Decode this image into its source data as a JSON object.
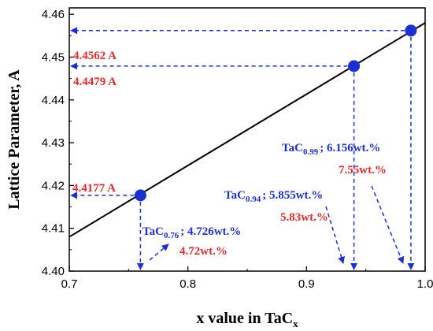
{
  "chart_data": {
    "type": "scatter",
    "xlabel": "x value in TaC",
    "xlabel_sub": "x",
    "ylabel": "Lattice Parameter, A",
    "xlim": [
      0.7,
      1.0
    ],
    "ylim": [
      4.4,
      4.4615
    ],
    "x_ticks": [
      "0.7",
      "0.8",
      "0.9",
      "1.0"
    ],
    "x_tick_values": [
      0.7,
      0.8,
      0.9,
      1.0
    ],
    "y_ticks": [
      "4.40",
      "4.41",
      "4.42",
      "4.43",
      "4.44",
      "4.45",
      "4.46"
    ],
    "y_tick_values": [
      4.4,
      4.41,
      4.42,
      4.43,
      4.44,
      4.45,
      4.46
    ],
    "fit_line": {
      "x": [
        0.7,
        1.0
      ],
      "y": [
        4.408,
        4.458
      ]
    },
    "points": [
      {
        "x": 0.76,
        "y": 4.4177,
        "label": "4.4177 A",
        "comp_base": "TaC",
        "comp_sub": "0.76",
        "comp_value": "; 4.726wt.%",
        "measured": "4.72wt.%"
      },
      {
        "x": 0.94,
        "y": 4.4479,
        "label": "4.4479 A",
        "comp_base": "TaC",
        "comp_sub": "0.94",
        "comp_value": "; 5.855wt.%",
        "measured": "5.83wt.%"
      },
      {
        "x": 0.988,
        "y": 4.4562,
        "label": "4.4562 A",
        "comp_base": "TaC",
        "comp_sub": "0.99",
        "comp_value": "; 6.156wt.%",
        "measured": "7.55wt.%"
      }
    ],
    "colors": {
      "point": "#1a2fd4",
      "guide": "#1a2fd4",
      "value_label": "#e8262b",
      "composition_label": "#1a2fd4",
      "line": "#000000"
    }
  }
}
